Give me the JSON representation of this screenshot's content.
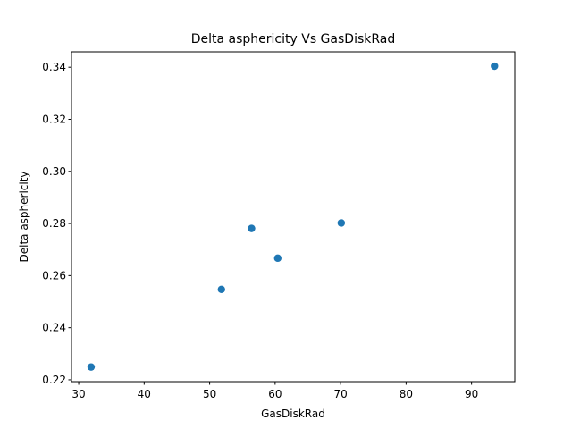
{
  "chart_data": {
    "type": "scatter",
    "title": "Delta asphericity Vs GasDiskRad",
    "xlabel": "GasDiskRad",
    "ylabel": "Delta asphericity",
    "xlim": [
      28.9,
      96.6
    ],
    "ylim": [
      0.2193,
      0.3459
    ],
    "xticks": [
      30,
      40,
      50,
      60,
      70,
      80,
      90
    ],
    "xtick_labels": [
      "30",
      "40",
      "50",
      "60",
      "70",
      "80",
      "90"
    ],
    "yticks": [
      0.22,
      0.24,
      0.26,
      0.28,
      0.3,
      0.32,
      0.34
    ],
    "ytick_labels": [
      "0.22",
      "0.24",
      "0.26",
      "0.28",
      "0.30",
      "0.32",
      "0.34"
    ],
    "grid": false,
    "marker_color": "#1f77b4",
    "series": [
      {
        "points": [
          {
            "x": 31.9,
            "y": 0.2249
          },
          {
            "x": 51.8,
            "y": 0.2547
          },
          {
            "x": 56.4,
            "y": 0.2781
          },
          {
            "x": 60.4,
            "y": 0.2667
          },
          {
            "x": 70.1,
            "y": 0.2802
          },
          {
            "x": 93.5,
            "y": 0.3404
          }
        ]
      }
    ]
  }
}
